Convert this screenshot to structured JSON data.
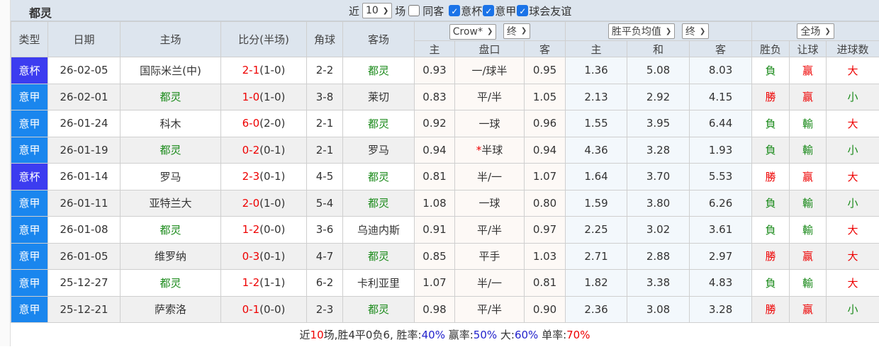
{
  "team": "都灵",
  "filters": {
    "near": "近",
    "count": "10",
    "unit": "场",
    "same_away": "同客",
    "same_away_checked": false,
    "comps": [
      {
        "label": "意杯",
        "checked": true
      },
      {
        "label": "意甲",
        "checked": true
      },
      {
        "label": "球会友谊",
        "checked": true
      }
    ]
  },
  "headers": {
    "type": "类型",
    "date": "日期",
    "home": "主场",
    "score": "比分(半场)",
    "corner": "角球",
    "away": "客场",
    "odds_company": "Crow*",
    "odds_phase": "终",
    "euro_type": "胜平负均值",
    "euro_phase": "终",
    "result_scope": "全场",
    "odds_cols": [
      "主",
      "盘口",
      "客"
    ],
    "euro_cols": [
      "主",
      "和",
      "客"
    ],
    "res_cols": [
      "胜负",
      "让球",
      "进球数"
    ]
  },
  "colors": {
    "cup": "#3c3cf0",
    "league": "#1a86ee",
    "win": "#e00",
    "lose": "#1a8a1a"
  },
  "rows": [
    {
      "type": "意杯",
      "date": "26-02-05",
      "home": "国际米兰(中)",
      "ft": "2-1",
      "ht": "(1-0)",
      "corner": "2-2",
      "away": "都灵",
      "o_h": "0.93",
      "hc": "一/球半",
      "o_a": "0.95",
      "e_h": "1.36",
      "e_d": "5.08",
      "e_a": "8.03",
      "r": "負",
      "rh": "赢",
      "ou": "大"
    },
    {
      "type": "意甲",
      "date": "26-02-01",
      "home": "都灵",
      "ft": "1-0",
      "ht": "(1-0)",
      "corner": "3-8",
      "away": "莱切",
      "o_h": "0.83",
      "hc": "平/半",
      "o_a": "1.05",
      "e_h": "2.13",
      "e_d": "2.92",
      "e_a": "4.15",
      "r": "勝",
      "rh": "赢",
      "ou": "小"
    },
    {
      "type": "意甲",
      "date": "26-01-24",
      "home": "科木",
      "ft": "6-0",
      "ht": "(2-0)",
      "corner": "2-1",
      "away": "都灵",
      "o_h": "0.92",
      "hc": "一球",
      "o_a": "0.96",
      "e_h": "1.55",
      "e_d": "3.95",
      "e_a": "6.44",
      "r": "負",
      "rh": "輸",
      "ou": "大"
    },
    {
      "type": "意甲",
      "date": "26-01-19",
      "home": "都灵",
      "ft": "0-2",
      "ht": "(0-1)",
      "corner": "2-1",
      "away": "罗马",
      "o_h": "0.94",
      "hc_star": "*",
      "hc": "半球",
      "o_a": "0.94",
      "e_h": "4.36",
      "e_d": "3.28",
      "e_a": "1.93",
      "r": "負",
      "rh": "輸",
      "ou": "小"
    },
    {
      "type": "意杯",
      "date": "26-01-14",
      "home": "罗马",
      "ft": "2-3",
      "ht": "(0-1)",
      "corner": "4-5",
      "away": "都灵",
      "o_h": "0.81",
      "hc": "半/一",
      "o_a": "1.07",
      "e_h": "1.64",
      "e_d": "3.70",
      "e_a": "5.53",
      "r": "勝",
      "rh": "赢",
      "ou": "大"
    },
    {
      "type": "意甲",
      "date": "26-01-11",
      "home": "亚特兰大",
      "ft": "2-0",
      "ht": "(1-0)",
      "corner": "5-4",
      "away": "都灵",
      "o_h": "1.08",
      "hc": "一球",
      "o_a": "0.80",
      "e_h": "1.59",
      "e_d": "3.80",
      "e_a": "6.26",
      "r": "負",
      "rh": "輸",
      "ou": "小"
    },
    {
      "type": "意甲",
      "date": "26-01-08",
      "home": "都灵",
      "ft": "1-2",
      "ht": "(0-0)",
      "corner": "3-6",
      "away": "乌迪内斯",
      "o_h": "0.91",
      "hc": "平/半",
      "o_a": "0.97",
      "e_h": "2.25",
      "e_d": "3.02",
      "e_a": "3.61",
      "r": "負",
      "rh": "輸",
      "ou": "大"
    },
    {
      "type": "意甲",
      "date": "26-01-05",
      "home": "维罗纳",
      "ft": "0-3",
      "ht": "(0-1)",
      "corner": "4-7",
      "away": "都灵",
      "o_h": "0.85",
      "hc": "平手",
      "o_a": "1.03",
      "e_h": "2.71",
      "e_d": "2.88",
      "e_a": "2.97",
      "r": "勝",
      "rh": "赢",
      "ou": "大"
    },
    {
      "type": "意甲",
      "date": "25-12-27",
      "home": "都灵",
      "ft": "1-2",
      "ht": "(1-1)",
      "corner": "6-2",
      "away": "卡利亚里",
      "o_h": "1.07",
      "hc": "半/一",
      "o_a": "0.81",
      "e_h": "1.82",
      "e_d": "3.38",
      "e_a": "4.83",
      "r": "負",
      "rh": "輸",
      "ou": "大"
    },
    {
      "type": "意甲",
      "date": "25-12-21",
      "home": "萨索洛",
      "ft": "0-1",
      "ht": "(0-0)",
      "corner": "2-3",
      "away": "都灵",
      "o_h": "0.98",
      "hc": "平/半",
      "o_a": "0.90",
      "e_h": "2.36",
      "e_d": "3.08",
      "e_a": "3.28",
      "r": "勝",
      "rh": "赢",
      "ou": "小"
    }
  ],
  "summary": {
    "p1": "近",
    "n": "10",
    "p2": "场,胜4平0负6, 胜率:",
    "win": "40%",
    "p3": " 赢率:",
    "hwin": "50%",
    "p4": " 大:",
    "big": "60%",
    "p5": " 单率:",
    "odd": "70%"
  }
}
